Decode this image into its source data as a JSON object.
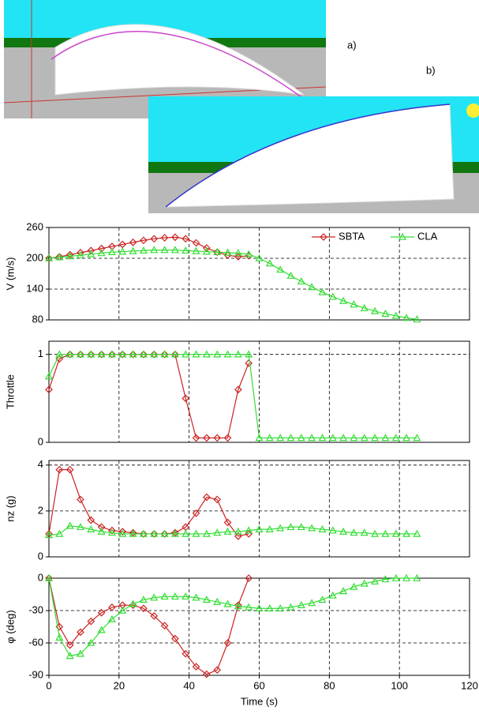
{
  "figure": {
    "labels": [
      "a)",
      "b)"
    ]
  },
  "chart_data": [
    {
      "type": "line",
      "ylabel": "V (m/s)",
      "xlim": [
        0,
        120
      ],
      "ylim": [
        80,
        260
      ],
      "yticks": [
        80,
        140,
        200,
        260
      ],
      "grid": true,
      "legend": "top-right",
      "x": [
        0,
        3,
        6,
        9,
        12,
        15,
        18,
        21,
        24,
        27,
        30,
        33,
        36,
        39,
        42,
        45,
        48,
        51,
        54,
        57,
        60,
        63,
        66,
        69,
        72,
        75,
        78,
        81,
        84,
        87,
        90,
        93,
        96,
        99,
        102,
        105
      ],
      "series": [
        {
          "name": "SBTA",
          "color": "#cc2222",
          "marker": "diamond",
          "values": [
            200,
            203,
            207,
            211,
            215,
            219,
            223,
            227,
            231,
            235,
            238,
            240,
            241,
            238,
            230,
            220,
            212,
            206,
            203,
            205,
            null,
            null,
            null,
            null,
            null,
            null,
            null,
            null,
            null,
            null,
            null,
            null,
            null,
            null,
            null,
            null
          ]
        },
        {
          "name": "CLA",
          "color": "#33dd33",
          "marker": "triangle",
          "values": [
            200,
            202,
            204,
            206,
            208,
            210,
            212,
            213,
            214,
            215,
            216,
            216,
            216,
            215,
            214,
            213,
            212,
            211,
            210,
            208,
            200,
            190,
            178,
            166,
            155,
            144,
            134,
            125,
            117,
            110,
            103,
            97,
            92,
            88,
            84,
            81
          ]
        }
      ]
    },
    {
      "type": "line",
      "ylabel": "Throttle",
      "xlim": [
        0,
        120
      ],
      "ylim": [
        0,
        1.15
      ],
      "yticks": [
        0,
        1
      ],
      "grid": true,
      "x": [
        0,
        3,
        6,
        9,
        12,
        15,
        18,
        21,
        24,
        27,
        30,
        33,
        36,
        39,
        42,
        45,
        48,
        51,
        54,
        57,
        60,
        63,
        66,
        69,
        72,
        75,
        78,
        81,
        84,
        87,
        90,
        93,
        96,
        99,
        102,
        105
      ],
      "series": [
        {
          "name": "SBTA",
          "color": "#cc2222",
          "marker": "diamond",
          "values": [
            0.6,
            0.95,
            1,
            1,
            1,
            1,
            1,
            1,
            1,
            1,
            1,
            1,
            1,
            0.5,
            0.05,
            0.05,
            0.05,
            0.05,
            0.6,
            0.9,
            null,
            null,
            null,
            null,
            null,
            null,
            null,
            null,
            null,
            null,
            null,
            null,
            null,
            null,
            null,
            null
          ]
        },
        {
          "name": "CLA",
          "color": "#33dd33",
          "marker": "triangle",
          "values": [
            0.75,
            1,
            1,
            1,
            1,
            1,
            1,
            1,
            1,
            1,
            1,
            1,
            1,
            1,
            1,
            1,
            1,
            1,
            1,
            1,
            0.05,
            0.05,
            0.05,
            0.05,
            0.05,
            0.05,
            0.05,
            0.05,
            0.05,
            0.05,
            0.05,
            0.05,
            0.05,
            0.05,
            0.05,
            0.05
          ]
        }
      ]
    },
    {
      "type": "line",
      "ylabel": "nz (g)",
      "xlim": [
        0,
        120
      ],
      "ylim": [
        0,
        4.2
      ],
      "yticks": [
        0,
        2,
        4
      ],
      "grid": true,
      "x": [
        0,
        3,
        6,
        9,
        12,
        15,
        18,
        21,
        24,
        27,
        30,
        33,
        36,
        39,
        42,
        45,
        48,
        51,
        54,
        57,
        60,
        63,
        66,
        69,
        72,
        75,
        78,
        81,
        84,
        87,
        90,
        93,
        96,
        99,
        102,
        105
      ],
      "series": [
        {
          "name": "SBTA",
          "color": "#cc2222",
          "marker": "diamond",
          "values": [
            1,
            3.8,
            3.8,
            2.5,
            1.6,
            1.3,
            1.15,
            1.1,
            1.05,
            1,
            1,
            1,
            1.05,
            1.3,
            1.9,
            2.6,
            2.5,
            1.5,
            0.9,
            1,
            null,
            null,
            null,
            null,
            null,
            null,
            null,
            null,
            null,
            null,
            null,
            null,
            null,
            null,
            null,
            null
          ]
        },
        {
          "name": "CLA",
          "color": "#33dd33",
          "marker": "triangle",
          "values": [
            0.95,
            1,
            1.35,
            1.3,
            1.2,
            1.1,
            1.05,
            1,
            1,
            1,
            1,
            1,
            1,
            1,
            1,
            1,
            1.05,
            1.1,
            1.1,
            1.15,
            1.2,
            1.2,
            1.25,
            1.3,
            1.3,
            1.25,
            1.2,
            1.15,
            1.1,
            1.05,
            1.05,
            1,
            1,
            1,
            1,
            1
          ]
        }
      ]
    },
    {
      "type": "line",
      "ylabel": "φ (deg)",
      "xlabel": "Time (s)",
      "xlim": [
        0,
        120
      ],
      "xticks": [
        0,
        20,
        40,
        60,
        80,
        100,
        120
      ],
      "ylim": [
        -90,
        0
      ],
      "yticks": [
        0,
        -30,
        -60,
        -90
      ],
      "grid": true,
      "x": [
        0,
        3,
        6,
        9,
        12,
        15,
        18,
        21,
        24,
        27,
        30,
        33,
        36,
        39,
        42,
        45,
        48,
        51,
        54,
        57,
        60,
        63,
        66,
        69,
        72,
        75,
        78,
        81,
        84,
        87,
        90,
        93,
        96,
        99,
        102,
        105
      ],
      "series": [
        {
          "name": "SBTA",
          "color": "#cc2222",
          "marker": "diamond",
          "values": [
            0,
            -45,
            -62,
            -50,
            -40,
            -32,
            -27,
            -25,
            -25,
            -28,
            -35,
            -44,
            -56,
            -70,
            -82,
            -89,
            -85,
            -60,
            -25,
            0,
            null,
            null,
            null,
            null,
            null,
            null,
            null,
            null,
            null,
            null,
            null,
            null,
            null,
            null,
            null,
            null
          ]
        },
        {
          "name": "CLA",
          "color": "#33dd33",
          "marker": "triangle",
          "values": [
            0,
            -55,
            -72,
            -70,
            -60,
            -48,
            -38,
            -30,
            -24,
            -20,
            -18,
            -17,
            -17,
            -17,
            -18,
            -20,
            -22,
            -24,
            -26,
            -27,
            -28,
            -28,
            -28,
            -27,
            -25,
            -23,
            -20,
            -16,
            -12,
            -8,
            -5,
            -3,
            -1,
            0,
            0,
            0
          ]
        }
      ]
    }
  ]
}
